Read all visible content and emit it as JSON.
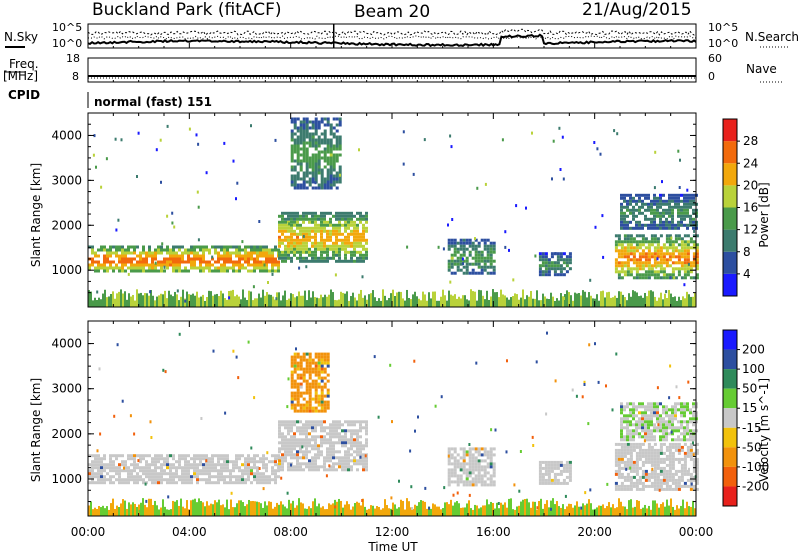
{
  "header": {
    "station": "Buckland Park (fitACF)",
    "beam": "Beam 20",
    "date": "21/Aug/2015"
  },
  "side_labels": {
    "nsky": "N.Sky",
    "nsearch": "N.Search",
    "freq": "Freq.",
    "freq_unit": "[MHz]",
    "nave": "Nave",
    "cpid": "CPID"
  },
  "top_ticks": {
    "noise_left_top": "10^5",
    "noise_left_bottom": "10^0",
    "noise_right_top": "10^5",
    "noise_right_bottom": "10^0",
    "freq_top": "18",
    "freq_bottom": "8",
    "nave_top": "60",
    "nave_bottom": "0"
  },
  "cpid_text": "normal (fast) 151",
  "x_axis": {
    "label": "Time UT",
    "ticks": [
      "00:00",
      "04:00",
      "08:00",
      "12:00",
      "16:00",
      "20:00",
      "00:00"
    ]
  },
  "y_axis": {
    "label": "Slant Range [km]",
    "ticks": [
      "1000",
      "2000",
      "3000",
      "4000"
    ]
  },
  "power_colorbar": {
    "label": "Power [dB]",
    "ticks": [
      "4",
      "8",
      "12",
      "16",
      "20",
      "24",
      "28"
    ],
    "colors": [
      "#1a1aff",
      "#2d4fa0",
      "#3c7b6e",
      "#4a9a4a",
      "#b9d23a",
      "#f2a80c",
      "#f26a0c",
      "#e8211c"
    ]
  },
  "velocity_colorbar": {
    "label": "Velocity [m s^-1]",
    "ticks": [
      "200",
      "100",
      "50",
      "15",
      "-15",
      "-50",
      "-100",
      "-200"
    ],
    "colors": [
      "#1a1aff",
      "#2d4fa0",
      "#2e8a5a",
      "#66cc33",
      "#c8c8c8",
      "#f2c20c",
      "#f2920c",
      "#f2600c",
      "#e8211c"
    ]
  },
  "chart_data": [
    {
      "type": "heatmap",
      "title": "Power",
      "xlabel": "Time UT",
      "ylabel": "Slant Range [km]",
      "xlim": [
        0,
        24
      ],
      "ylim": [
        180,
        4500
      ],
      "value_label": "Power [dB]",
      "value_range": [
        0,
        32
      ],
      "regions": [
        {
          "t0": 0.0,
          "t1": 7.5,
          "r0": 950,
          "r1": 1550,
          "value": 26
        },
        {
          "t0": 7.5,
          "t1": 11.0,
          "r0": 1200,
          "r1": 2300,
          "value": 22
        },
        {
          "t0": 8.0,
          "t1": 10.0,
          "r0": 2800,
          "r1": 4400,
          "value": 14
        },
        {
          "t0": 14.2,
          "t1": 16.0,
          "r0": 900,
          "r1": 1700,
          "value": 14
        },
        {
          "t0": 17.8,
          "t1": 19.0,
          "r0": 900,
          "r1": 1400,
          "value": 12
        },
        {
          "t0": 20.8,
          "t1": 24.0,
          "r0": 800,
          "r1": 1800,
          "value": 24
        },
        {
          "t0": 21.0,
          "t1": 24.0,
          "r0": 1900,
          "r1": 2700,
          "value": 12
        }
      ]
    },
    {
      "type": "heatmap",
      "title": "Velocity",
      "xlabel": "Time UT",
      "ylabel": "Slant Range [km]",
      "xlim": [
        0,
        24
      ],
      "ylim": [
        180,
        4500
      ],
      "value_label": "Velocity [m s^-1]",
      "value_range": [
        -200,
        200
      ],
      "regions": [
        {
          "t0": 0.0,
          "t1": 7.5,
          "r0": 950,
          "r1": 1550,
          "value": 0
        },
        {
          "t0": 7.5,
          "t1": 11.0,
          "r0": 1200,
          "r1": 2300,
          "value": 0
        },
        {
          "t0": 8.0,
          "t1": 9.5,
          "r0": 2500,
          "r1": 3800,
          "value": -60
        },
        {
          "t0": 14.2,
          "t1": 16.0,
          "r0": 900,
          "r1": 1700,
          "value": 0
        },
        {
          "t0": 17.8,
          "t1": 19.0,
          "r0": 900,
          "r1": 1400,
          "value": 0
        },
        {
          "t0": 20.8,
          "t1": 24.0,
          "r0": 800,
          "r1": 1800,
          "value": 0
        },
        {
          "t0": 21.0,
          "t1": 24.0,
          "r0": 1900,
          "r1": 2700,
          "value": 10
        }
      ]
    }
  ]
}
